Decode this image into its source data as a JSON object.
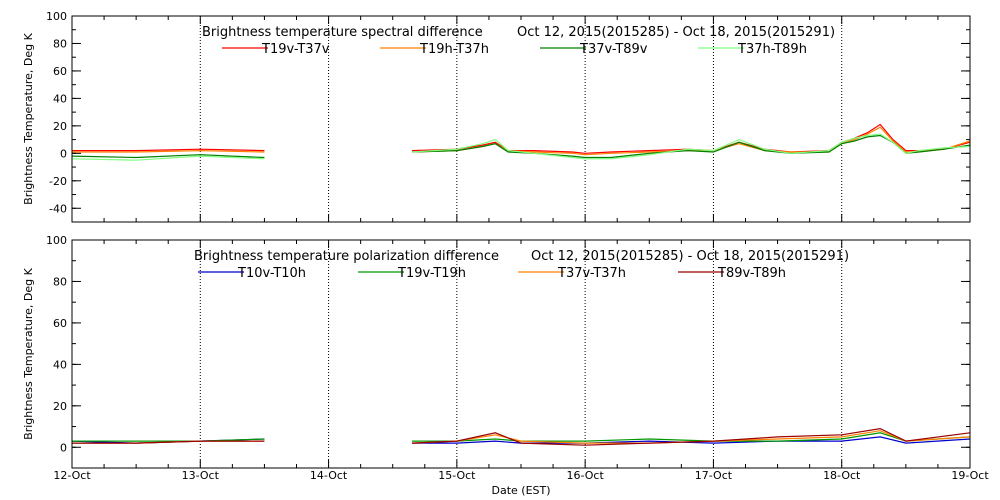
{
  "figure": {
    "xlabel": "Date (EST)",
    "x_tick_labels": [
      "12-Oct",
      "13-Oct",
      "14-Oct",
      "15-Oct",
      "16-Oct",
      "17-Oct",
      "18-Oct",
      "19-Oct"
    ]
  },
  "chart_data": [
    {
      "type": "line",
      "title": "Brightness temperature spectral difference",
      "subtitle": "Oct 12, 2015(2015285) - Oct 18, 2015(2015291)",
      "xlabel": "Date (EST)",
      "ylabel": "Brightness Temperature, Deg K",
      "xlim": [
        0,
        7
      ],
      "ylim": [
        -50,
        100
      ],
      "y_ticks": [
        -40,
        -20,
        0,
        20,
        40,
        60,
        80,
        100
      ],
      "x_tick_labels": [
        "12-Oct",
        "13-Oct",
        "14-Oct",
        "15-Oct",
        "16-Oct",
        "17-Oct",
        "18-Oct",
        "19-Oct"
      ],
      "grid": "vertical dotted at day boundaries",
      "legend": "top",
      "series": [
        {
          "name": "T19v-T37v",
          "color": "#ff0000",
          "x": [
            0,
            0.5,
            1.0,
            1.5,
            2.65,
            3.0,
            3.2,
            3.3,
            3.4,
            3.6,
            3.9,
            4.0,
            4.2,
            4.5,
            4.8,
            5.0,
            5.2,
            5.4,
            5.6,
            5.9,
            6.0,
            6.1,
            6.2,
            6.3,
            6.4,
            6.5,
            6.6,
            6.8,
            7.0
          ],
          "y": [
            2,
            2,
            3,
            2,
            2,
            3,
            6,
            8,
            2,
            2,
            1,
            0,
            1,
            2,
            3,
            2,
            8,
            3,
            1,
            2,
            8,
            11,
            15,
            21,
            10,
            2,
            2,
            3,
            8
          ]
        },
        {
          "name": "T19h-T37h",
          "color": "#ff8000",
          "x": [
            0,
            0.5,
            1.0,
            1.5,
            2.65,
            3.0,
            3.2,
            3.3,
            3.4,
            3.6,
            3.9,
            4.0,
            4.2,
            4.5,
            4.8,
            5.0,
            5.2,
            5.4,
            5.6,
            5.9,
            6.0,
            6.1,
            6.2,
            6.3,
            6.4,
            6.5,
            6.6,
            6.8,
            7.0
          ],
          "y": [
            1,
            1,
            2,
            1,
            1,
            2,
            5,
            7,
            2,
            1,
            0,
            -1,
            0,
            1,
            2,
            2,
            7,
            2,
            1,
            1,
            7,
            10,
            14,
            19,
            9,
            1,
            1,
            3,
            9
          ]
        },
        {
          "name": "T37v-T89v",
          "color": "#008000",
          "x": [
            0,
            0.5,
            1.0,
            1.5,
            2.65,
            3.0,
            3.2,
            3.3,
            3.4,
            3.6,
            3.9,
            4.0,
            4.2,
            4.5,
            4.8,
            5.0,
            5.2,
            5.4,
            5.6,
            5.9,
            6.0,
            6.1,
            6.2,
            6.3,
            6.4,
            6.5,
            6.6,
            6.8,
            7.0
          ],
          "y": [
            -2,
            -3,
            -1,
            -3,
            1,
            2,
            5,
            7,
            1,
            0,
            -2,
            -3,
            -3,
            0,
            2,
            1,
            8,
            2,
            0,
            1,
            7,
            9,
            12,
            13,
            8,
            0,
            1,
            3,
            6
          ]
        },
        {
          "name": "T37h-T89h",
          "color": "#80ff80",
          "x": [
            0,
            0.5,
            1.0,
            1.5,
            2.65,
            3.0,
            3.2,
            3.3,
            3.4,
            3.6,
            3.9,
            4.0,
            4.2,
            4.5,
            4.8,
            5.0,
            5.2,
            5.4,
            5.6,
            5.9,
            6.0,
            6.1,
            6.2,
            6.3,
            6.4,
            6.5,
            6.6,
            6.8,
            7.0
          ],
          "y": [
            -4,
            -5,
            -2,
            -4,
            1,
            3,
            7,
            10,
            2,
            0,
            -3,
            -4,
            -4,
            -1,
            3,
            2,
            10,
            3,
            0,
            2,
            8,
            11,
            13,
            14,
            8,
            0,
            2,
            4,
            5
          ]
        }
      ]
    },
    {
      "type": "line",
      "title": "Brightness temperature polarization difference",
      "subtitle": "Oct 12, 2015(2015285) - Oct 18, 2015(2015291)",
      "xlabel": "Date (EST)",
      "ylabel": "Brightness Temperature, Deg K",
      "xlim": [
        0,
        7
      ],
      "ylim": [
        -10,
        100
      ],
      "y_ticks": [
        0,
        20,
        40,
        60,
        80,
        100
      ],
      "x_tick_labels": [
        "12-Oct",
        "13-Oct",
        "14-Oct",
        "15-Oct",
        "16-Oct",
        "17-Oct",
        "18-Oct",
        "19-Oct"
      ],
      "grid": "vertical dotted at day boundaries",
      "legend": "top",
      "series": [
        {
          "name": "T10v-T10h",
          "color": "#0000cc",
          "x": [
            0,
            0.5,
            1.0,
            1.5,
            2.65,
            3.0,
            3.3,
            3.5,
            4.0,
            4.5,
            5.0,
            5.5,
            6.0,
            6.3,
            6.5,
            7.0
          ],
          "y": [
            3,
            2,
            3,
            4,
            2,
            2,
            3,
            2,
            2,
            3,
            2,
            3,
            3,
            5,
            2,
            4
          ]
        },
        {
          "name": "T19v-T19h",
          "color": "#009900",
          "x": [
            0,
            0.5,
            1.0,
            1.5,
            2.65,
            3.0,
            3.3,
            3.5,
            4.0,
            4.5,
            5.0,
            5.5,
            6.0,
            6.3,
            6.5,
            7.0
          ],
          "y": [
            3,
            3,
            3,
            4,
            3,
            3,
            4,
            3,
            3,
            4,
            3,
            3,
            4,
            7,
            3,
            5
          ]
        },
        {
          "name": "T37v-T37h",
          "color": "#ff8000",
          "x": [
            0,
            0.5,
            1.0,
            1.5,
            2.65,
            3.0,
            3.3,
            3.5,
            4.0,
            4.5,
            5.0,
            5.5,
            6.0,
            6.3,
            6.5,
            7.0
          ],
          "y": [
            2,
            2,
            3,
            3,
            2,
            3,
            6,
            3,
            2,
            2,
            3,
            4,
            5,
            8,
            3,
            5
          ]
        },
        {
          "name": "T89v-T89h",
          "color": "#990000",
          "x": [
            0,
            0.5,
            1.0,
            1.5,
            2.65,
            3.0,
            3.3,
            3.5,
            4.0,
            4.5,
            5.0,
            5.5,
            6.0,
            6.3,
            6.5,
            7.0
          ],
          "y": [
            2,
            2,
            3,
            3,
            2,
            3,
            7,
            2,
            1,
            2,
            3,
            5,
            6,
            9,
            3,
            7
          ]
        }
      ]
    }
  ]
}
